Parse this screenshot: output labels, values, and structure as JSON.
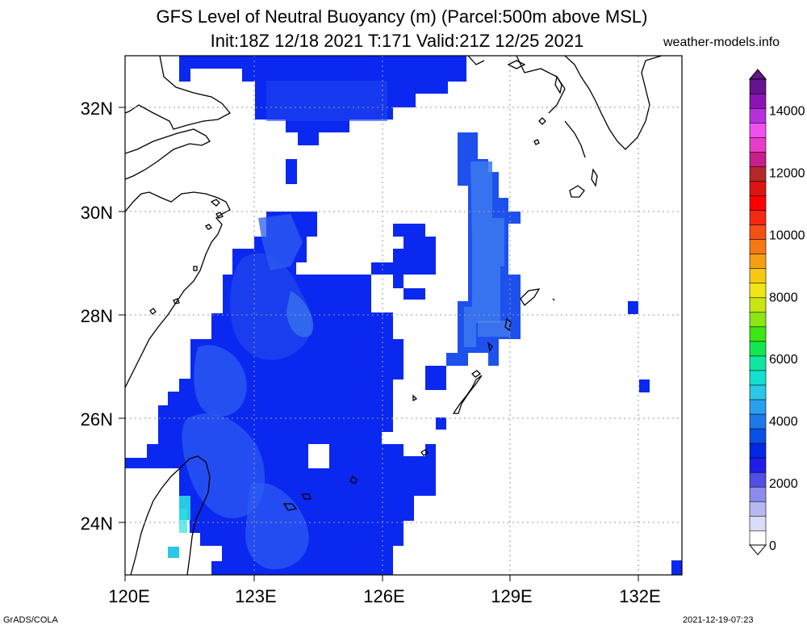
{
  "header": {
    "title_line1": "GFS Level of Neutral Buoyancy (m) (Parcel:500m above MSL)",
    "title_line2": "Init:18Z 12/18 2021 T:171 Valid:21Z 12/25 2021",
    "site": "weather-models.info"
  },
  "footer": {
    "left": "GrADS/COLA",
    "right": "2021-12-19-07:23"
  },
  "map": {
    "lat_labels": [
      "32N",
      "30N",
      "28N",
      "26N",
      "24N"
    ],
    "lon_labels": [
      "120E",
      "123E",
      "126E",
      "129E",
      "132E"
    ],
    "field_color_main": "#0a28f0",
    "field_color_light": "#2e5cf2",
    "field_color_pale": "#3c78ee",
    "field_color_cyan": "#2ee0e0"
  },
  "colorbar": {
    "labels": [
      "0",
      "2000",
      "4000",
      "6000",
      "8000",
      "10000",
      "12000",
      "14000"
    ],
    "max": 15000,
    "colors": [
      "#ffffff",
      "#dcdcf8",
      "#b8b8f0",
      "#8c8cec",
      "#5050e8",
      "#1e1ee6",
      "#0028e6",
      "#0a50e6",
      "#1e78ea",
      "#28a0ee",
      "#28c8e6",
      "#14e0d2",
      "#10e6a0",
      "#14e650",
      "#3ce614",
      "#8ce614",
      "#c8e614",
      "#f0e614",
      "#f5c814",
      "#f5a014",
      "#f57814",
      "#f55014",
      "#f52814",
      "#ff0000",
      "#dc1414",
      "#b42828",
      "#c81e8c",
      "#e63cc8",
      "#f050f0",
      "#b432dc",
      "#8c14b4",
      "#64148c"
    ]
  }
}
